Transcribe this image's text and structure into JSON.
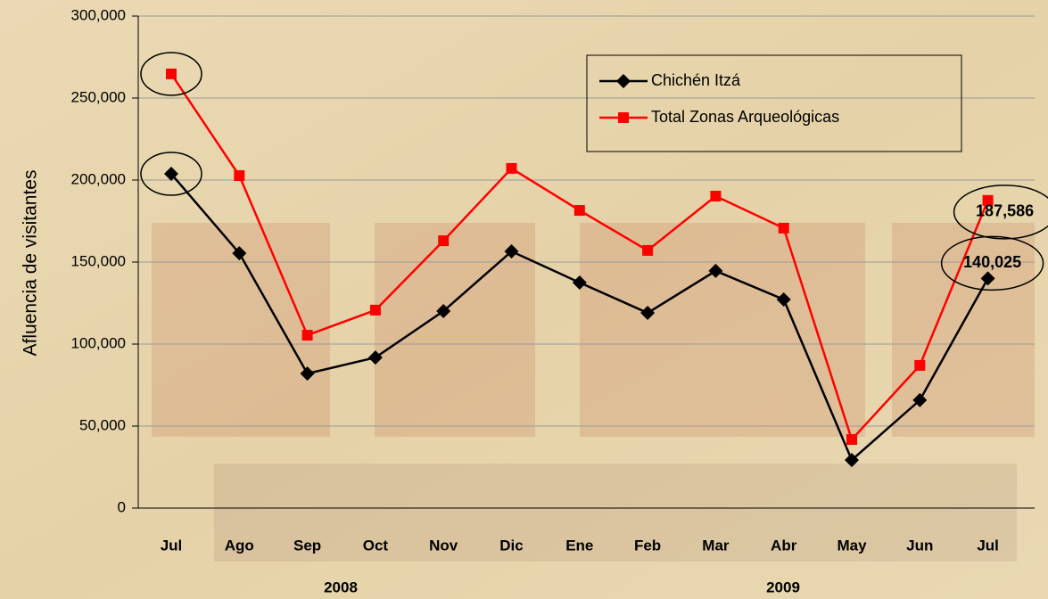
{
  "chart_data": {
    "type": "line",
    "y_label": "Afluencia de visitantes",
    "categories": [
      "Jul",
      "Ago",
      "Sep",
      "Oct",
      "Nov",
      "Dic",
      "Ene",
      "Feb",
      "Mar",
      "Abr",
      "May",
      "Jun",
      "Jul"
    ],
    "year_labels": [
      "2008",
      "2009"
    ],
    "series": [
      {
        "name": "Chichén Itzá",
        "color": "#000000",
        "marker": "diamond",
        "values": [
          203800,
          155400,
          82000,
          91800,
          120100,
          156500,
          137500,
          119000,
          144600,
          127200,
          29300,
          65800,
          140025
        ],
        "value_labels": [
          null,
          null,
          null,
          null,
          null,
          null,
          null,
          null,
          null,
          null,
          null,
          null,
          "140,025"
        ]
      },
      {
        "name": "Total Zonas Arqueológicas",
        "color": "#ff0000",
        "marker": "square",
        "values": [
          264700,
          202700,
          105400,
          120700,
          163000,
          207100,
          181500,
          157100,
          190200,
          170700,
          41800,
          87000,
          187586
        ],
        "value_labels": [
          null,
          null,
          null,
          null,
          null,
          null,
          null,
          null,
          null,
          null,
          null,
          null,
          "187,586"
        ]
      }
    ],
    "ylim": [
      0,
      300000
    ],
    "yticks": [
      0,
      {
        "value": 50000,
        "label": "50,000"
      },
      {
        "value": 100000,
        "label": "100,000"
      },
      {
        "value": 150000,
        "label": "150,000"
      },
      {
        "value": 200000,
        "label": "200,000"
      },
      {
        "value": 250000,
        "label": "250,000"
      },
      {
        "value": 300000,
        "label": "300,000"
      }
    ],
    "grid": true
  }
}
